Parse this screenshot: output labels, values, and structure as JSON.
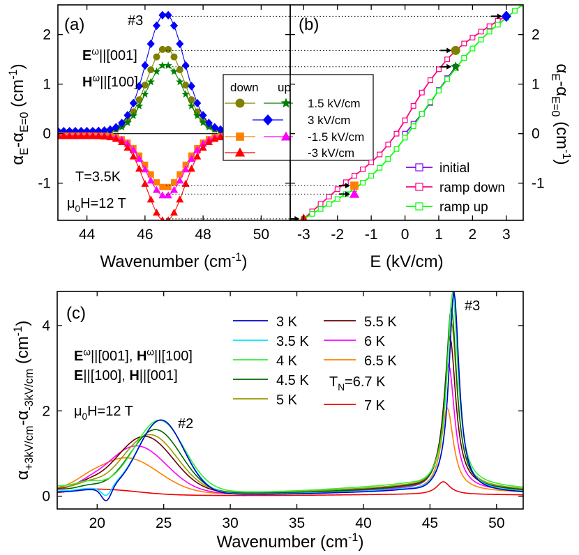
{
  "colors": {
    "olive": "#808000",
    "green": "#008000",
    "blue": "#0000ff",
    "orange": "#ff8000",
    "magenta": "#ff00ff",
    "red": "#ff0000",
    "pink": "#ff0080",
    "purple": "#8000ff",
    "light_green": "#00ff00"
  },
  "chart_data": [
    {
      "id": "a",
      "type": "line",
      "panel_label": "(a)",
      "xlabel": "Wavenumber (cm",
      "xlabel_sup": "-1",
      "xlabel_end": ")",
      "ylabel_prefix": "α",
      "ylabel_sub1": "E",
      "ylabel_mid": "-α",
      "ylabel_sub2": "E=0",
      "ylabel_suffix": " (cm",
      "ylabel_sup": "-1",
      "ylabel_end": ")",
      "xlim": [
        43,
        51
      ],
      "ylim": [
        -1.75,
        2.6
      ],
      "xticks": [
        "44",
        "46",
        "48",
        "50"
      ],
      "xtick_values": [
        44,
        46,
        48,
        50
      ],
      "yticks": [
        "-1",
        "0",
        "1",
        "2"
      ],
      "ytick_values": [
        -1,
        0,
        1,
        2
      ],
      "peak_label": "#3",
      "annotations": {
        "e_field_main": "E",
        "e_field_sup": "ω",
        "e_field_rest": "||[001]",
        "h_field_main": "H",
        "h_field_sup": "ω",
        "h_field_rest": "||[100]",
        "temperature": "T=3.5K",
        "field_mu": "μ",
        "field_sub": "0",
        "field_rest": "H=12 T"
      },
      "peak_center": 46.7,
      "peak_width": 0.65,
      "x_range": [
        43.0,
        50.9
      ],
      "series": [
        {
          "name": "1.5 kV/cm",
          "color": "#808000",
          "marker": "circle",
          "amplitude": 1.68,
          "offset": 0.04
        },
        {
          "name": "1.5 kV/cm",
          "color": "#008000",
          "marker": "star",
          "amplitude": 1.35,
          "offset": 0.04
        },
        {
          "name": "3 kV/cm",
          "color": "#0000ff",
          "marker": "diamond",
          "amplitude": 2.37,
          "offset": 0.05
        },
        {
          "name": "-1.5 kV/cm",
          "color": "#ff8000",
          "marker": "square",
          "amplitude": -1.05,
          "offset": -0.04
        },
        {
          "name": "-1.5 kV/cm",
          "color": "#ff00ff",
          "marker": "triangle",
          "amplitude": -1.22,
          "offset": -0.04
        },
        {
          "name": "-3 kV/cm",
          "color": "#ff0000",
          "marker": "triangle",
          "amplitude": -1.72,
          "offset": -0.05
        }
      ],
      "legend": {
        "header_down": "down",
        "header_up": "up",
        "rows": [
          {
            "label": "1.5 kV/cm",
            "down_color": "#808000",
            "down_marker": "circle",
            "up_color": "#008000",
            "up_marker": "star"
          },
          {
            "label": "3 kV/cm",
            "down_color": "#0000ff",
            "down_marker": "diamond"
          },
          {
            "label": "-1.5 kV/cm",
            "down_color": "#ff8000",
            "down_marker": "square",
            "up_color": "#ff00ff",
            "up_marker": "triangle"
          },
          {
            "label": "-3 kV/cm",
            "down_color": "#ff0000",
            "down_marker": "triangle"
          }
        ]
      }
    },
    {
      "id": "b",
      "type": "line",
      "panel_label": "(b)",
      "xlabel": "E (kV/cm)",
      "ylabel_prefix": "α",
      "ylabel_sub1": "E",
      "ylabel_mid": "-α",
      "ylabel_sub2": "E=0",
      "ylabel_suffix": " (cm",
      "ylabel_sup": "-1",
      "ylabel_end": ")",
      "xlim": [
        -3.4,
        3.5
      ],
      "ylim": [
        -1.75,
        2.6
      ],
      "xticks": [
        "-3",
        "-2",
        "-1",
        "0",
        "1",
        "2",
        "3"
      ],
      "xtick_values": [
        -3,
        -2,
        -1,
        0,
        1,
        2,
        3
      ],
      "yticks": [
        "-1",
        "0",
        "1",
        "2"
      ],
      "ytick_values": [
        -1,
        0,
        1,
        2
      ],
      "series": [
        {
          "name": "initial",
          "color": "#8000ff",
          "marker": "open-square",
          "x": [
            0,
            0.25,
            0.5,
            0.75,
            1.0,
            1.25,
            1.5
          ],
          "y": [
            0,
            0.2,
            0.4,
            0.62,
            0.88,
            1.12,
            1.35
          ]
        },
        {
          "name": "ramp down",
          "color": "#ff0080",
          "marker": "open-square",
          "x": [
            3.0,
            2.75,
            2.5,
            2.25,
            2.0,
            1.75,
            1.5,
            1.25,
            1.0,
            0.75,
            0.5,
            0.25,
            0.0,
            -0.25,
            -0.5,
            -0.75,
            -1.0,
            -1.25,
            -1.5,
            -1.75,
            -2.0,
            -2.25,
            -2.5,
            -2.75,
            -3.0
          ],
          "y": [
            2.37,
            2.28,
            2.17,
            2.06,
            1.94,
            1.82,
            1.68,
            1.5,
            1.3,
            1.08,
            0.83,
            0.56,
            0.27,
            0.0,
            -0.22,
            -0.42,
            -0.58,
            -0.72,
            -0.85,
            -0.98,
            -1.12,
            -1.27,
            -1.42,
            -1.57,
            -1.72
          ]
        },
        {
          "name": "ramp up",
          "color": "#00ff00",
          "marker": "open-square",
          "x": [
            -3.0,
            -2.75,
            -2.5,
            -2.25,
            -2.0,
            -1.75,
            -1.5,
            -1.25,
            -1.0,
            -0.75,
            -0.5,
            -0.25,
            0.0,
            0.25,
            0.5,
            0.75,
            1.0,
            1.25,
            1.5,
            1.75,
            2.0,
            2.25,
            2.5,
            2.75,
            3.0,
            3.25,
            3.5
          ],
          "y": [
            -1.72,
            -1.62,
            -1.52,
            -1.42,
            -1.32,
            -1.22,
            -1.12,
            -0.99,
            -0.85,
            -0.69,
            -0.51,
            -0.31,
            -0.08,
            0.15,
            0.4,
            0.64,
            0.87,
            1.1,
            1.32,
            1.53,
            1.72,
            1.9,
            2.06,
            2.2,
            2.34,
            2.48,
            2.62
          ]
        }
      ],
      "highlight_points": [
        {
          "x": 3.0,
          "y": 2.37,
          "color": "#0000ff",
          "marker": "diamond"
        },
        {
          "x": 1.5,
          "y": 1.68,
          "color": "#808000",
          "marker": "circle"
        },
        {
          "x": 1.5,
          "y": 1.35,
          "color": "#008000",
          "marker": "star"
        },
        {
          "x": -1.5,
          "y": -1.05,
          "color": "#ff8000",
          "marker": "square"
        },
        {
          "x": -1.5,
          "y": -1.22,
          "color": "#ff00ff",
          "marker": "triangle"
        },
        {
          "x": -3.0,
          "y": -1.72,
          "color": "#ff0000",
          "marker": "triangle"
        }
      ],
      "legend": [
        {
          "label": "initial",
          "color": "#8000ff"
        },
        {
          "label": "ramp down",
          "color": "#ff0080"
        },
        {
          "label": "ramp up",
          "color": "#00ff00"
        }
      ]
    },
    {
      "id": "c",
      "type": "line",
      "panel_label": "(c)",
      "xlabel": "Wavenumber (cm",
      "xlabel_sup": "-1",
      "xlabel_end": ")",
      "ylabel_prefix": "α",
      "ylabel_sub1": "+3kV/cm",
      "ylabel_mid": "-α",
      "ylabel_sub2": "-3kV/cm",
      "ylabel_suffix": " (cm",
      "ylabel_sup": "-1",
      "ylabel_end": ")",
      "xlim": [
        17,
        52
      ],
      "ylim": [
        -0.3,
        4.8
      ],
      "xticks": [
        "20",
        "25",
        "30",
        "35",
        "40",
        "45",
        "50"
      ],
      "xtick_values": [
        20,
        25,
        30,
        35,
        40,
        45,
        50
      ],
      "yticks": [
        "0",
        "2",
        "4"
      ],
      "ytick_values": [
        0,
        2,
        4
      ],
      "peak_labels": {
        "p2": "#2",
        "p3": "#3"
      },
      "annotations": {
        "line1_e": "E",
        "line1_e_sup": "ω",
        "line1_e_rest": "||[001], ",
        "line1_h": "H",
        "line1_h_sup": "ω",
        "line1_h_rest": "||[100]",
        "line2_e": "E",
        "line2_e_rest": "||[100], ",
        "line2_h": "H",
        "line2_h_rest": "||[001]",
        "field_mu": "μ",
        "field_sub": "0",
        "field_rest": "H=12 T",
        "tn_text": "T",
        "tn_sub": "N",
        "tn_rest": "=6.7 K"
      },
      "series": [
        {
          "name": "3 K",
          "color": "#0000cc",
          "p3_amp": 4.7,
          "p3_center": 46.8,
          "p3_width": 0.75,
          "p2_amp": 1.72,
          "p2_center": 24.8,
          "p2_width": 1.7,
          "bg": 0.1,
          "dip": 0.3
        },
        {
          "name": "3.5 K",
          "color": "#00e5ff",
          "p3_amp": 4.62,
          "p3_center": 46.8,
          "p3_width": 0.76,
          "p2_amp": 1.7,
          "p2_center": 24.8,
          "p2_width": 1.72,
          "bg": 0.12,
          "dip": 0.2
        },
        {
          "name": "4 K",
          "color": "#33ee33",
          "p3_amp": 4.55,
          "p3_center": 46.7,
          "p3_width": 0.8,
          "p2_amp": 1.62,
          "p2_center": 24.7,
          "p2_width": 1.85,
          "bg": 0.24,
          "dip": 0.0
        },
        {
          "name": "4.5 K",
          "color": "#006600",
          "p3_amp": 4.25,
          "p3_center": 46.6,
          "p3_width": 0.82,
          "p2_amp": 1.45,
          "p2_center": 24.4,
          "p2_width": 1.9,
          "bg": 0.16,
          "dip": 0.0
        },
        {
          "name": "5 K",
          "color": "#999900",
          "p3_amp": 3.9,
          "p3_center": 46.6,
          "p3_width": 0.85,
          "p2_amp": 1.3,
          "p2_center": 24.0,
          "p2_width": 2.0,
          "bg": 0.2,
          "dip": 0.0
        },
        {
          "name": "5.5 K",
          "color": "#660000",
          "p3_amp": 3.55,
          "p3_center": 46.5,
          "p3_width": 0.86,
          "p2_amp": 1.27,
          "p2_center": 23.6,
          "p2_width": 2.1,
          "bg": 0.18,
          "dip": 0.0
        },
        {
          "name": "6 K",
          "color": "#ff00ff",
          "p3_amp": 2.95,
          "p3_center": 46.4,
          "p3_width": 0.88,
          "p2_amp": 1.07,
          "p2_center": 23.0,
          "p2_width": 2.2,
          "bg": 0.14,
          "dip": 0.0
        },
        {
          "name": "6.5 K",
          "color": "#ff8000",
          "p3_amp": 1.95,
          "p3_center": 46.3,
          "p3_width": 0.9,
          "p2_amp": 0.8,
          "p2_center": 22.2,
          "p2_width": 2.4,
          "bg": 0.12,
          "dip": 0.0
        },
        {
          "name": "7 K",
          "color": "#ee0000",
          "p3_amp": 0.3,
          "p3_center": 46.0,
          "p3_width": 1.0,
          "p2_amp": 0.12,
          "p2_center": 20.5,
          "p2_width": 2.5,
          "bg": 0.04,
          "dip": 0.0
        }
      ]
    }
  ]
}
